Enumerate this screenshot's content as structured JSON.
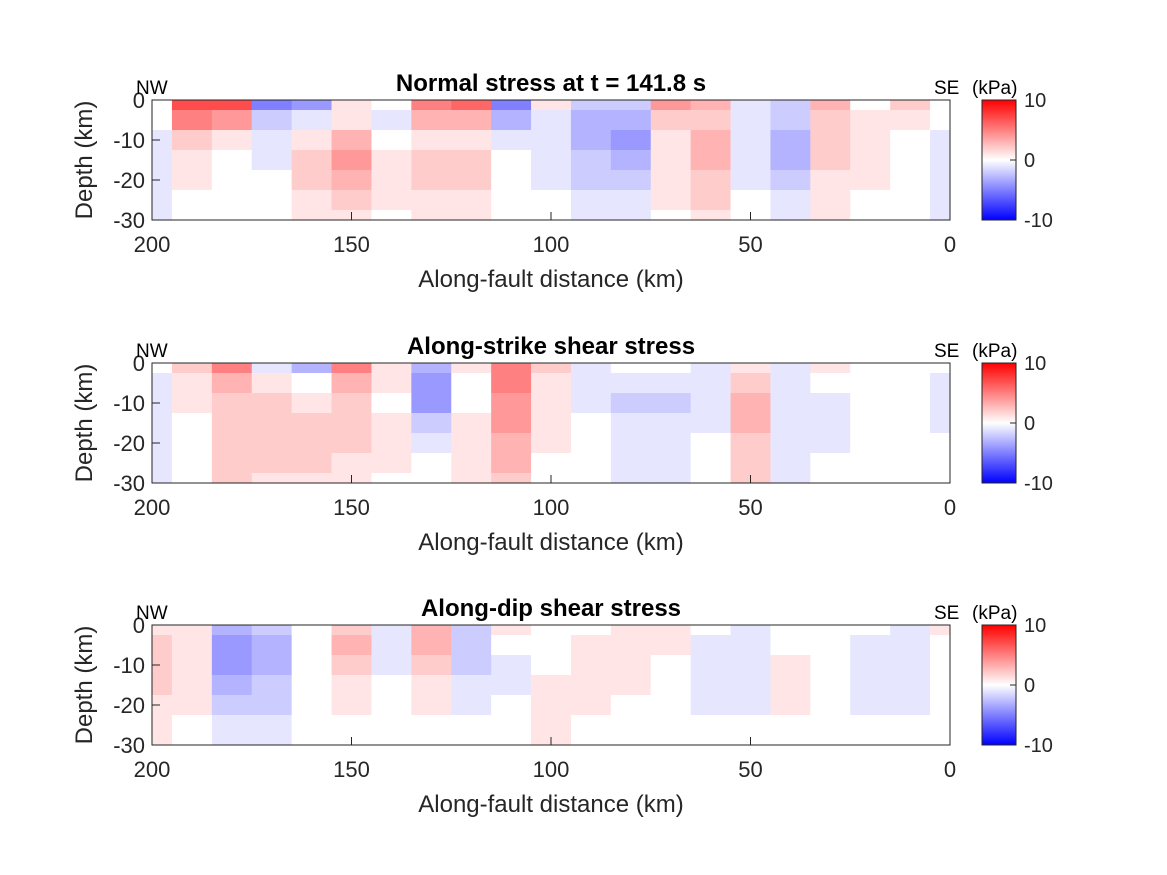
{
  "colors": {
    "positive": "#ff0000",
    "neutral": "#ffffff",
    "negative": "#0000ff",
    "axis": "#262626",
    "text": "#262626"
  },
  "chart_data": [
    {
      "type": "heatmap",
      "title": "Normal stress at t = 141.8 s",
      "xlabel": "Along-fault distance (km)",
      "ylabel": "Depth (km)",
      "xlim": [
        200,
        0
      ],
      "ylim": [
        -30,
        0
      ],
      "xticks": [
        "200",
        "150",
        "100",
        "50",
        "0"
      ],
      "xtick_values": [
        200,
        150,
        100,
        50,
        0
      ],
      "yticks": [
        "0",
        "-10",
        "-20",
        "-30"
      ],
      "ytick_values": [
        0,
        -10,
        -20,
        -30
      ],
      "left_label": "NW",
      "right_label": "SE",
      "colorbar": {
        "unit": "(kPa)",
        "range": [
          -10,
          10
        ],
        "ticks": [
          "10",
          "0",
          "-10"
        ],
        "tick_values": [
          10,
          0,
          -10
        ]
      },
      "x": [
        200,
        190,
        180,
        170,
        160,
        150,
        140,
        130,
        120,
        110,
        100,
        90,
        80,
        70,
        60,
        50,
        40,
        30,
        20,
        10,
        0
      ],
      "depth": [
        0,
        -5,
        -10,
        -15,
        -20,
        -25,
        -30
      ],
      "values": [
        [
          0,
          7,
          7,
          -5,
          -4,
          1,
          0,
          5,
          6,
          -5,
          1,
          -2,
          -2,
          4,
          3,
          -1,
          -2,
          3,
          0,
          2,
          0
        ],
        [
          0,
          5,
          4,
          -2,
          -1,
          1,
          -1,
          3,
          3,
          -3,
          -1,
          -3,
          -3,
          2,
          2,
          -1,
          -2,
          2,
          1,
          1,
          0
        ],
        [
          -1,
          2,
          1,
          -1,
          1,
          3,
          0,
          1,
          1,
          -1,
          -1,
          -3,
          -4,
          1,
          3,
          -1,
          -3,
          2,
          1,
          0,
          -1
        ],
        [
          -1,
          1,
          0,
          -1,
          2,
          4,
          1,
          2,
          2,
          0,
          -1,
          -2,
          -3,
          1,
          3,
          -1,
          -3,
          2,
          1,
          0,
          -1
        ],
        [
          -1,
          1,
          0,
          0,
          2,
          3,
          1,
          2,
          2,
          0,
          -1,
          -2,
          -2,
          1,
          2,
          -1,
          -2,
          1,
          1,
          0,
          -1
        ],
        [
          -1,
          0,
          0,
          0,
          1,
          2,
          1,
          1,
          1,
          0,
          0,
          -1,
          -1,
          1,
          2,
          0,
          -1,
          1,
          0,
          0,
          -1
        ],
        [
          -1,
          0,
          0,
          0,
          1,
          1,
          0,
          1,
          1,
          0,
          0,
          -1,
          -1,
          0,
          1,
          0,
          -1,
          1,
          0,
          0,
          -1
        ]
      ]
    },
    {
      "type": "heatmap",
      "title": "Along-strike shear stress",
      "xlabel": "Along-fault distance (km)",
      "ylabel": "Depth (km)",
      "xlim": [
        200,
        0
      ],
      "ylim": [
        -30,
        0
      ],
      "xticks": [
        "200",
        "150",
        "100",
        "50",
        "0"
      ],
      "xtick_values": [
        200,
        150,
        100,
        50,
        0
      ],
      "yticks": [
        "0",
        "-10",
        "-20",
        "-30"
      ],
      "ytick_values": [
        0,
        -10,
        -20,
        -30
      ],
      "left_label": "NW",
      "right_label": "SE",
      "colorbar": {
        "unit": "(kPa)",
        "range": [
          -10,
          10
        ],
        "ticks": [
          "10",
          "0",
          "-10"
        ],
        "tick_values": [
          10,
          0,
          -10
        ]
      },
      "x": [
        200,
        190,
        180,
        170,
        160,
        150,
        140,
        130,
        120,
        110,
        100,
        90,
        80,
        70,
        60,
        50,
        40,
        30,
        20,
        10,
        0
      ],
      "depth": [
        0,
        -5,
        -10,
        -15,
        -20,
        -25,
        -30
      ],
      "values": [
        [
          0,
          2,
          5,
          -1,
          -3,
          5,
          1,
          -3,
          1,
          5,
          2,
          -1,
          0,
          0,
          -1,
          1,
          -1,
          1,
          0,
          0,
          0
        ],
        [
          -1,
          1,
          3,
          1,
          0,
          3,
          1,
          -4,
          0,
          5,
          1,
          -1,
          -1,
          -1,
          -1,
          2,
          -1,
          0,
          0,
          0,
          -1
        ],
        [
          -1,
          1,
          2,
          2,
          1,
          2,
          0,
          -4,
          0,
          4,
          1,
          -1,
          -2,
          -2,
          -1,
          3,
          -1,
          -1,
          0,
          0,
          -1
        ],
        [
          -1,
          0,
          2,
          2,
          2,
          2,
          1,
          -2,
          1,
          4,
          1,
          0,
          -1,
          -1,
          -1,
          3,
          -1,
          -1,
          0,
          0,
          -1
        ],
        [
          -1,
          0,
          2,
          2,
          2,
          2,
          1,
          -1,
          1,
          3,
          1,
          0,
          -1,
          -1,
          0,
          2,
          -1,
          -1,
          0,
          0,
          0
        ],
        [
          -1,
          0,
          2,
          2,
          2,
          1,
          1,
          0,
          1,
          3,
          0,
          0,
          -1,
          -1,
          0,
          2,
          -1,
          0,
          0,
          0,
          0
        ],
        [
          -1,
          0,
          2,
          1,
          1,
          1,
          0,
          0,
          1,
          2,
          0,
          0,
          -1,
          -1,
          0,
          2,
          -1,
          0,
          0,
          0,
          0
        ]
      ]
    },
    {
      "type": "heatmap",
      "title": "Along-dip shear stress",
      "xlabel": "Along-fault distance (km)",
      "ylabel": "Depth (km)",
      "xlim": [
        200,
        0
      ],
      "ylim": [
        -30,
        0
      ],
      "xticks": [
        "200",
        "150",
        "100",
        "50",
        "0"
      ],
      "xtick_values": [
        200,
        150,
        100,
        50,
        0
      ],
      "yticks": [
        "0",
        "-10",
        "-20",
        "-30"
      ],
      "ytick_values": [
        0,
        -10,
        -20,
        -30
      ],
      "left_label": "NW",
      "right_label": "SE",
      "colorbar": {
        "unit": "(kPa)",
        "range": [
          -10,
          10
        ],
        "ticks": [
          "10",
          "0",
          "-10"
        ],
        "tick_values": [
          10,
          0,
          -10
        ]
      },
      "x": [
        200,
        190,
        180,
        170,
        160,
        150,
        140,
        130,
        120,
        110,
        100,
        90,
        80,
        70,
        60,
        50,
        40,
        30,
        20,
        10,
        0
      ],
      "depth": [
        0,
        -5,
        -10,
        -15,
        -20,
        -25,
        -30
      ],
      "values": [
        [
          1,
          1,
          -3,
          -2,
          0,
          2,
          -1,
          3,
          -2,
          1,
          0,
          0,
          1,
          1,
          0,
          -1,
          0,
          0,
          0,
          -1,
          1
        ],
        [
          2,
          1,
          -4,
          -3,
          0,
          3,
          -1,
          3,
          -2,
          0,
          0,
          1,
          1,
          1,
          -1,
          -1,
          0,
          0,
          -1,
          -1,
          0
        ],
        [
          2,
          1,
          -4,
          -3,
          0,
          2,
          -1,
          2,
          -2,
          -1,
          0,
          1,
          1,
          0,
          -1,
          -1,
          1,
          0,
          -1,
          -1,
          0
        ],
        [
          2,
          1,
          -3,
          -2,
          0,
          1,
          0,
          1,
          -1,
          -1,
          1,
          1,
          1,
          0,
          -1,
          -1,
          1,
          0,
          -1,
          -1,
          0
        ],
        [
          1,
          1,
          -2,
          -2,
          0,
          1,
          0,
          1,
          -1,
          0,
          1,
          1,
          0,
          0,
          -1,
          -1,
          1,
          0,
          -1,
          -1,
          0
        ],
        [
          1,
          0,
          -1,
          -1,
          0,
          0,
          0,
          0,
          0,
          0,
          1,
          0,
          0,
          0,
          0,
          0,
          0,
          0,
          0,
          0,
          0
        ],
        [
          1,
          0,
          -1,
          -1,
          0,
          0,
          0,
          0,
          0,
          0,
          1,
          0,
          0,
          0,
          0,
          0,
          0,
          0,
          0,
          0,
          0
        ]
      ]
    }
  ]
}
